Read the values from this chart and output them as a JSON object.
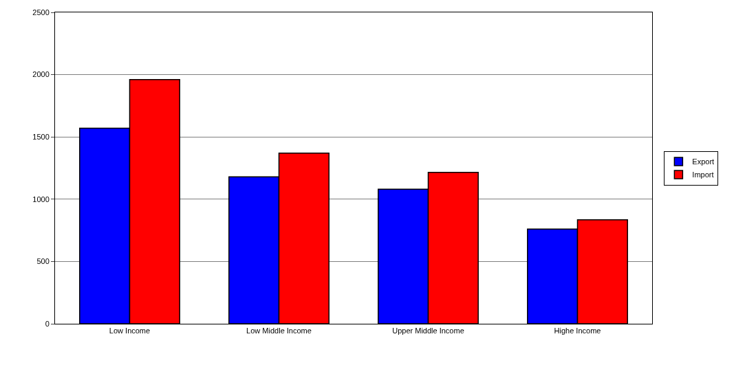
{
  "chart_data": {
    "type": "bar",
    "categories": [
      "Low Income",
      "Low Middle Income",
      "Upper Middle Income",
      "Highe Income"
    ],
    "series": [
      {
        "name": "Export",
        "color": "#0000ff",
        "values": [
          1570,
          1180,
          1080,
          760
        ]
      },
      {
        "name": "Import",
        "color": "#ff0000",
        "values": [
          1960,
          1370,
          1215,
          835
        ]
      }
    ],
    "ylim": [
      0,
      2500
    ],
    "yticks": [
      0,
      500,
      1000,
      1500,
      2000,
      2500
    ],
    "grid": "y",
    "legend": "right"
  }
}
